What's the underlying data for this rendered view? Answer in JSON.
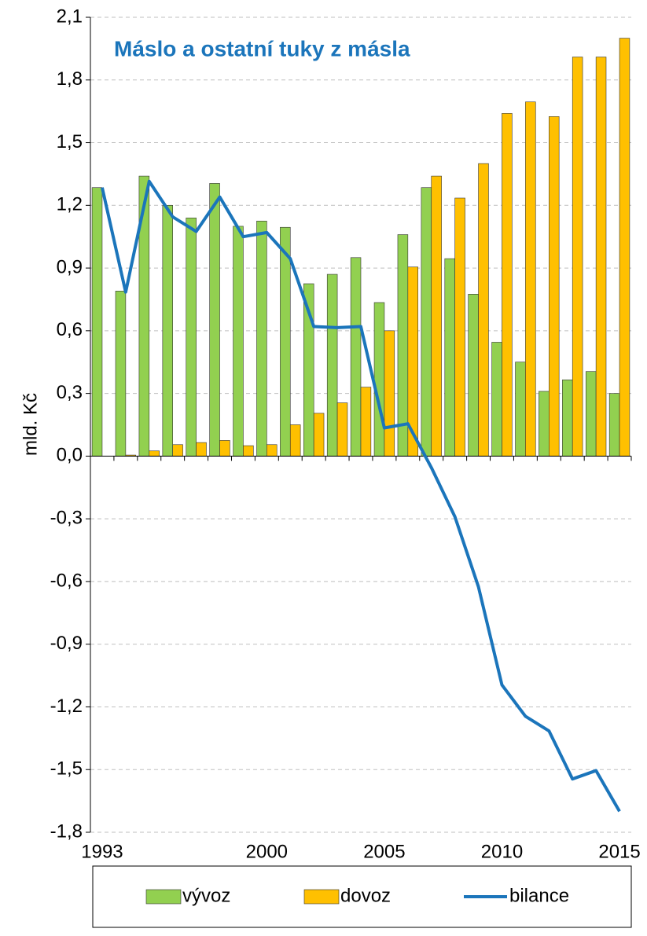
{
  "chart_data": {
    "type": "bar",
    "title": "Máslo a ostatní tuky z másla",
    "y_label": "mld. Kč",
    "categories": [
      "1993",
      null,
      null,
      null,
      null,
      null,
      null,
      "2000",
      null,
      null,
      null,
      null,
      "2005",
      null,
      null,
      null,
      null,
      "2010",
      null,
      null,
      null,
      null,
      "2015"
    ],
    "series": [
      {
        "name": "vývoz",
        "type": "bar",
        "color": "#92d050",
        "values": [
          1.285,
          0.79,
          1.34,
          1.2,
          1.14,
          1.305,
          1.1,
          1.125,
          1.095,
          0.825,
          0.87,
          0.95,
          0.735,
          1.06,
          1.285,
          0.945,
          0.775,
          0.545,
          0.45,
          0.31,
          0.365,
          0.405,
          0.3
        ]
      },
      {
        "name": "dovoz",
        "type": "bar",
        "color": "#ffc000",
        "values": [
          0,
          0.005,
          0.025,
          0.055,
          0.065,
          0.075,
          0.05,
          0.055,
          0.15,
          0.205,
          0.255,
          0.33,
          0.6,
          0.905,
          1.34,
          1.235,
          1.4,
          1.64,
          1.695,
          1.625,
          1.91,
          1.91,
          2.0
        ]
      },
      {
        "name": "bilance",
        "type": "line",
        "color": "#1b75bb",
        "values": [
          1.285,
          0.785,
          1.315,
          1.145,
          1.075,
          1.24,
          1.05,
          1.07,
          0.945,
          0.62,
          0.615,
          0.62,
          0.135,
          0.155,
          -0.055,
          -0.29,
          -0.625,
          -1.095,
          -1.245,
          -1.315,
          -1.545,
          -1.505,
          -1.7
        ]
      }
    ],
    "ylim": [
      -1.8,
      2.1
    ],
    "yticks": [
      {
        "value": -1.8,
        "label": "-1,8"
      },
      {
        "value": -1.5,
        "label": "-1,5"
      },
      {
        "value": -1.2,
        "label": "-1,2"
      },
      {
        "value": -0.9,
        "label": "-0,9"
      },
      {
        "value": -0.6,
        "label": "-0,6"
      },
      {
        "value": -0.3,
        "label": "-0,3"
      },
      {
        "value": 0,
        "label": "0,0"
      },
      {
        "value": 0.3,
        "label": "0,3"
      },
      {
        "value": 0.6,
        "label": "0,6"
      },
      {
        "value": 0.9,
        "label": "0,9"
      },
      {
        "value": 1.2,
        "label": "1,2"
      },
      {
        "value": 1.5,
        "label": "1,5"
      },
      {
        "value": 1.8,
        "label": "1,8"
      },
      {
        "value": 2.1,
        "label": "2,1"
      }
    ],
    "grid": true,
    "legend": "bottom"
  }
}
